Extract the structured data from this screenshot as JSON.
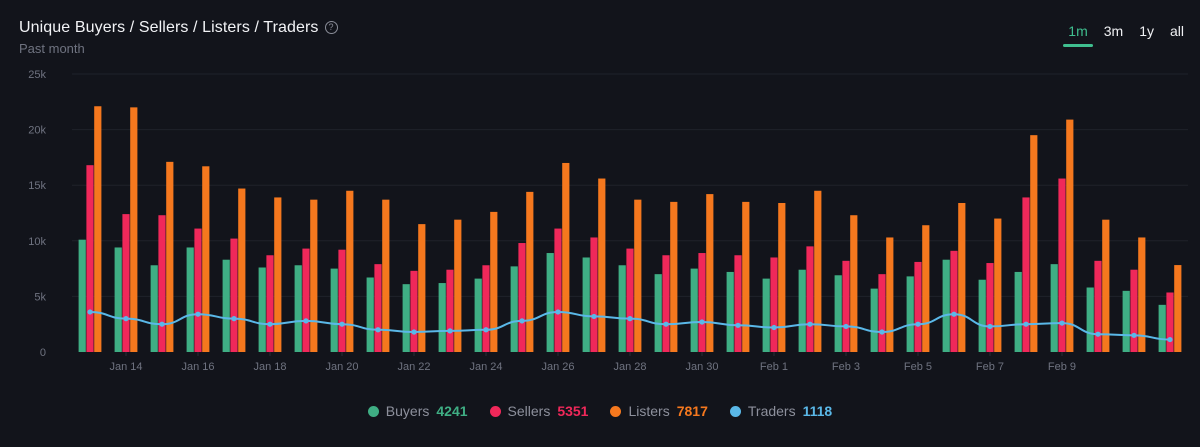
{
  "header": {
    "title": "Unique Buyers / Sellers / Listers / Traders",
    "help_icon": "?",
    "subtitle": "Past month"
  },
  "ranges": [
    {
      "label": "1m",
      "active": true
    },
    {
      "label": "3m",
      "active": false
    },
    {
      "label": "1y",
      "active": false
    },
    {
      "label": "all",
      "active": false
    }
  ],
  "colors": {
    "buyers": "#3fae84",
    "sellers": "#f0285a",
    "listers": "#f5781e",
    "traders": "#5ab8e8",
    "grid": "#1f222b",
    "tick": "#6f7380"
  },
  "legend": [
    {
      "name": "Buyers",
      "value": "4241",
      "color_key": "buyers"
    },
    {
      "name": "Sellers",
      "value": "5351",
      "color_key": "sellers"
    },
    {
      "name": "Listers",
      "value": "7817",
      "color_key": "listers"
    },
    {
      "name": "Traders",
      "value": "1118",
      "color_key": "traders"
    }
  ],
  "chart_data": {
    "type": "bar",
    "title": "Unique Buyers / Sellers / Listers / Traders",
    "subtitle": "Past month",
    "ylim": [
      0,
      25000
    ],
    "yticks": [
      0,
      5000,
      10000,
      15000,
      20000,
      25000
    ],
    "ytick_labels": [
      "0",
      "5k",
      "10k",
      "15k",
      "20k",
      "25k"
    ],
    "x_tick_labels": [
      "Jan 14",
      "Jan 16",
      "Jan 18",
      "Jan 20",
      "Jan 22",
      "Jan 24",
      "Jan 26",
      "Jan 28",
      "Jan 30",
      "Feb 1",
      "Feb 3",
      "Feb 5",
      "Feb 7",
      "Feb 9"
    ],
    "x_tick_every": 2,
    "x_tick_offset": 0.5,
    "categories": [
      "Jan 13",
      "Jan 14",
      "Jan 15",
      "Jan 16",
      "Jan 17",
      "Jan 18",
      "Jan 19",
      "Jan 20",
      "Jan 21",
      "Jan 22",
      "Jan 23",
      "Jan 24",
      "Jan 25",
      "Jan 26",
      "Jan 27",
      "Jan 28",
      "Jan 29",
      "Jan 30",
      "Jan 31",
      "Feb 1",
      "Feb 2",
      "Feb 3",
      "Feb 4",
      "Feb 5",
      "Feb 6",
      "Feb 7",
      "Feb 8",
      "Feb 9",
      "Feb 10",
      "Feb 11",
      "Feb 12"
    ],
    "series": [
      {
        "name": "Buyers",
        "type": "bar",
        "values": [
          10100,
          9400,
          7800,
          9400,
          8300,
          7600,
          7800,
          7500,
          6700,
          6100,
          6200,
          6600,
          7700,
          8900,
          8500,
          7800,
          7000,
          7500,
          7200,
          6600,
          7400,
          6900,
          5700,
          6800,
          8300,
          6500,
          7200,
          7900,
          5800,
          5500,
          4241
        ]
      },
      {
        "name": "Sellers",
        "type": "bar",
        "values": [
          16800,
          12400,
          12300,
          11100,
          10200,
          8700,
          9300,
          9200,
          7900,
          7300,
          7400,
          7800,
          9800,
          11100,
          10300,
          9300,
          8700,
          8900,
          8700,
          8500,
          9500,
          8200,
          7000,
          8100,
          9100,
          8000,
          13900,
          15600,
          8200,
          7400,
          5351
        ]
      },
      {
        "name": "Listers",
        "type": "bar",
        "values": [
          22100,
          22000,
          17100,
          16700,
          14700,
          13900,
          13700,
          14500,
          13700,
          11500,
          11900,
          12600,
          14400,
          17000,
          15600,
          13700,
          13500,
          14200,
          13500,
          13400,
          14500,
          12300,
          10300,
          11400,
          13400,
          12000,
          19500,
          20900,
          11900,
          10300,
          7817
        ]
      },
      {
        "name": "Traders",
        "type": "line",
        "values": [
          3600,
          3000,
          2500,
          3400,
          3000,
          2500,
          2800,
          2500,
          2000,
          1800,
          1900,
          2000,
          2800,
          3600,
          3200,
          3000,
          2500,
          2700,
          2400,
          2200,
          2500,
          2300,
          1800,
          2500,
          3400,
          2300,
          2500,
          2600,
          1600,
          1500,
          1118
        ]
      }
    ]
  }
}
